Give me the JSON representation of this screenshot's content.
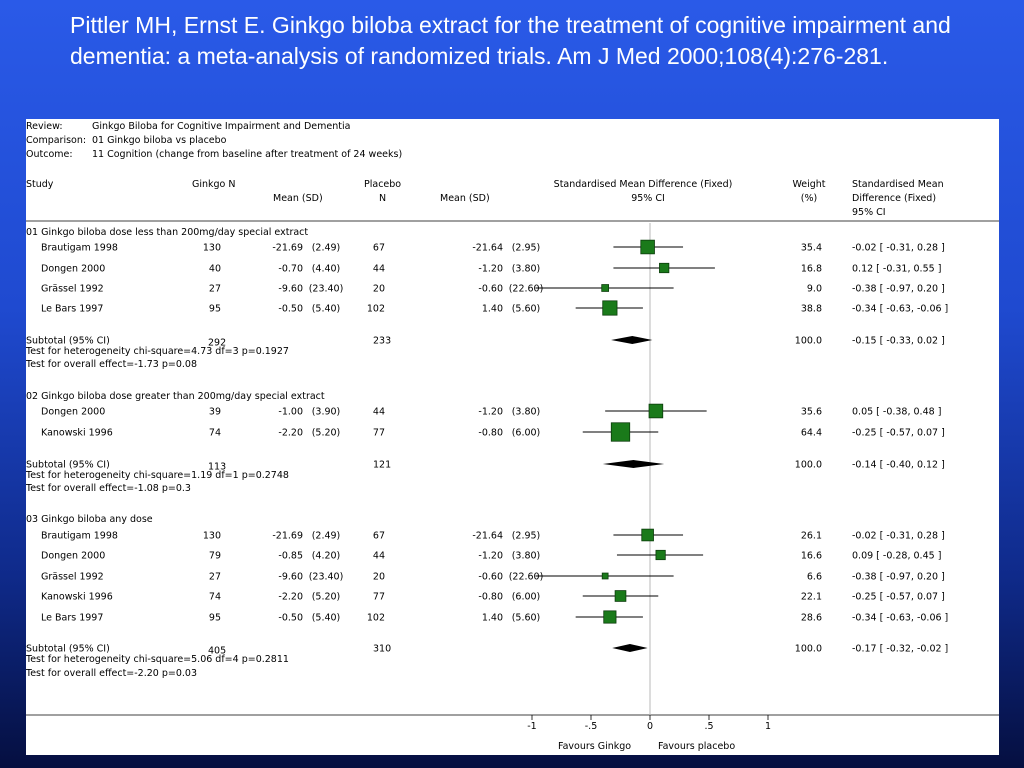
{
  "slide": {
    "title": "Pittler MH, Ernst E. Ginkgo biloba extract for the treatment of cognitive impairment and dementia: a meta-analysis of randomized trials. Am J Med 2000;108(4):276-281."
  },
  "chart_data": {
    "type": "forest",
    "meta": [
      {
        "label": "Review:",
        "value": "Ginkgo Biloba for Cognitive Impairment and Dementia"
      },
      {
        "label": "Comparison:",
        "value": "01 Ginkgo biloba vs placebo"
      },
      {
        "label": "Outcome:",
        "value": "11 Cognition (change from baseline after treatment of 24 weeks)"
      }
    ],
    "headers": {
      "study": "Study",
      "ginkgo_n": "Ginkgo N",
      "ginkgo_mean": "Mean (SD)",
      "placebo": "Placebo",
      "placebo_n": "N",
      "placebo_mean": "Mean (SD)",
      "smd_line1": "Standardised Mean Difference (Fixed)",
      "smd_line2": "95% CI",
      "weight_line1": "Weight",
      "weight_line2": "(%)",
      "effect_line1": "Standardised Mean",
      "effect_line2": "Difference (Fixed)",
      "effect_line3": "95% CI"
    },
    "axis": {
      "min": -1,
      "max": 1,
      "ticks": [
        {
          "value": -1,
          "label": "-1"
        },
        {
          "value": -0.5,
          "label": "-.5"
        },
        {
          "value": 0,
          "label": "0"
        },
        {
          "value": 0.5,
          "label": ".5"
        },
        {
          "value": 1,
          "label": "1"
        }
      ],
      "favours_left": "Favours Ginkgo",
      "favours_right": "Favours placebo"
    },
    "groups": [
      {
        "title": "01 Ginkgo biloba dose less than 200mg/day special extract",
        "studies": [
          {
            "name": "Brautigam 1998",
            "gn": "130",
            "gmean": "-21.69",
            "gsd": "(2.49)",
            "pn": "67",
            "pmean": "-21.64",
            "psd": "(2.95)",
            "weight": "35.4",
            "ci_text": "-0.02 [ -0.31, 0.28 ]",
            "est": -0.02,
            "lo": -0.31,
            "hi": 0.28
          },
          {
            "name": "Dongen 2000",
            "gn": "40",
            "gmean": "-0.70",
            "gsd": "(4.40)",
            "pn": "44",
            "pmean": "-1.20",
            "psd": "(3.80)",
            "weight": "16.8",
            "ci_text": "0.12 [ -0.31, 0.55 ]",
            "est": 0.12,
            "lo": -0.31,
            "hi": 0.55
          },
          {
            "name": "Grässel 1992",
            "gn": "27",
            "gmean": "-9.60",
            "gsd": "(23.40)",
            "pn": "20",
            "pmean": "-0.60",
            "psd": "(22.60)",
            "weight": "9.0",
            "ci_text": "-0.38 [ -0.97, 0.20 ]",
            "est": -0.38,
            "lo": -0.97,
            "hi": 0.2
          },
          {
            "name": "Le Bars 1997",
            "gn": "95",
            "gmean": "-0.50",
            "gsd": "(5.40)",
            "pn": "102",
            "pmean": "1.40",
            "psd": "(5.60)",
            "weight": "38.8",
            "ci_text": "-0.34 [ -0.63, -0.06 ]",
            "est": -0.34,
            "lo": -0.63,
            "hi": -0.06
          }
        ],
        "subtotal": {
          "label": "Subtotal (95% CI)",
          "gn": "292",
          "pn": "233",
          "weight": "100.0",
          "ci_text": "-0.15 [ -0.33, 0.02 ]",
          "est": -0.15,
          "lo": -0.33,
          "hi": 0.02
        },
        "het": "Test for heterogeneity chi-square=4.73 df=3 p=0.1927",
        "overall": "Test for overall effect=-1.73 p=0.08"
      },
      {
        "title": "02 Ginkgo biloba dose greater than 200mg/day special extract",
        "studies": [
          {
            "name": "Dongen 2000",
            "gn": "39",
            "gmean": "-1.00",
            "gsd": "(3.90)",
            "pn": "44",
            "pmean": "-1.20",
            "psd": "(3.80)",
            "weight": "35.6",
            "ci_text": "0.05 [ -0.38, 0.48 ]",
            "est": 0.05,
            "lo": -0.38,
            "hi": 0.48
          },
          {
            "name": "Kanowski 1996",
            "gn": "74",
            "gmean": "-2.20",
            "gsd": "(5.20)",
            "pn": "77",
            "pmean": "-0.80",
            "psd": "(6.00)",
            "weight": "64.4",
            "ci_text": "-0.25 [ -0.57, 0.07 ]",
            "est": -0.25,
            "lo": -0.57,
            "hi": 0.07
          }
        ],
        "subtotal": {
          "label": "Subtotal (95% CI)",
          "gn": "113",
          "pn": "121",
          "weight": "100.0",
          "ci_text": "-0.14 [ -0.40, 0.12 ]",
          "est": -0.14,
          "lo": -0.4,
          "hi": 0.12
        },
        "het": "Test for heterogeneity chi-square=1.19 df=1 p=0.2748",
        "overall": "Test for overall effect=-1.08 p=0.3"
      },
      {
        "title": "03 Ginkgo biloba any dose",
        "studies": [
          {
            "name": "Brautigam 1998",
            "gn": "130",
            "gmean": "-21.69",
            "gsd": "(2.49)",
            "pn": "67",
            "pmean": "-21.64",
            "psd": "(2.95)",
            "weight": "26.1",
            "ci_text": "-0.02 [ -0.31, 0.28 ]",
            "est": -0.02,
            "lo": -0.31,
            "hi": 0.28
          },
          {
            "name": "Dongen 2000",
            "gn": "79",
            "gmean": "-0.85",
            "gsd": "(4.20)",
            "pn": "44",
            "pmean": "-1.20",
            "psd": "(3.80)",
            "weight": "16.6",
            "ci_text": "0.09 [ -0.28, 0.45 ]",
            "est": 0.09,
            "lo": -0.28,
            "hi": 0.45
          },
          {
            "name": "Grässel 1992",
            "gn": "27",
            "gmean": "-9.60",
            "gsd": "(23.40)",
            "pn": "20",
            "pmean": "-0.60",
            "psd": "(22.60)",
            "weight": "6.6",
            "ci_text": "-0.38 [ -0.97, 0.20 ]",
            "est": -0.38,
            "lo": -0.97,
            "hi": 0.2
          },
          {
            "name": "Kanowski 1996",
            "gn": "74",
            "gmean": "-2.20",
            "gsd": "(5.20)",
            "pn": "77",
            "pmean": "-0.80",
            "psd": "(6.00)",
            "weight": "22.1",
            "ci_text": "-0.25 [ -0.57, 0.07 ]",
            "est": -0.25,
            "lo": -0.57,
            "hi": 0.07
          },
          {
            "name": "Le Bars 1997",
            "gn": "95",
            "gmean": "-0.50",
            "gsd": "(5.40)",
            "pn": "102",
            "pmean": "1.40",
            "psd": "(5.60)",
            "weight": "28.6",
            "ci_text": "-0.34 [ -0.63, -0.06 ]",
            "est": -0.34,
            "lo": -0.63,
            "hi": -0.06
          }
        ],
        "subtotal": {
          "label": "Subtotal (95% CI)",
          "gn": "405",
          "pn": "310",
          "weight": "100.0",
          "ci_text": "-0.17 [ -0.32, -0.02 ]",
          "est": -0.17,
          "lo": -0.32,
          "hi": -0.02
        },
        "het": "Test for heterogeneity chi-square=5.06 df=4 p=0.2811",
        "overall": "Test for overall effect=-2.20 p=0.03"
      }
    ],
    "colors": {
      "box": "#1a7a1a",
      "box_border": "#0c3d0c",
      "diamond": "#000000",
      "line": "#000000",
      "zero_line": "#b8b8b8"
    }
  }
}
